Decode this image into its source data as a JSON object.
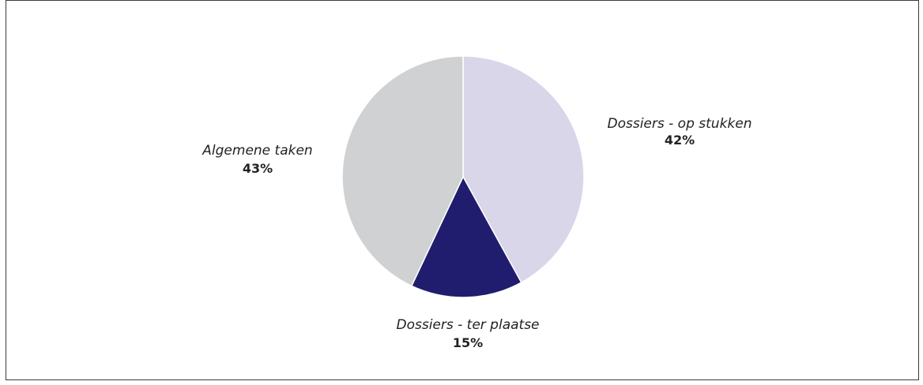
{
  "chart_data": {
    "type": "pie",
    "slices": [
      {
        "label": "Dossiers - op stukken",
        "value": 42,
        "value_label": "42%",
        "color": "#d8d6e8"
      },
      {
        "label": "Dossiers - ter plaatse",
        "value": 15,
        "value_label": "15%",
        "color": "#211d6e"
      },
      {
        "label": "Algemene taken",
        "value": 43,
        "value_label": "43%",
        "color": "#d0d1d3"
      }
    ],
    "start_angle_deg": 0,
    "direction": "clockwise",
    "slice_border_color": "#ffffff",
    "legend": "none"
  }
}
